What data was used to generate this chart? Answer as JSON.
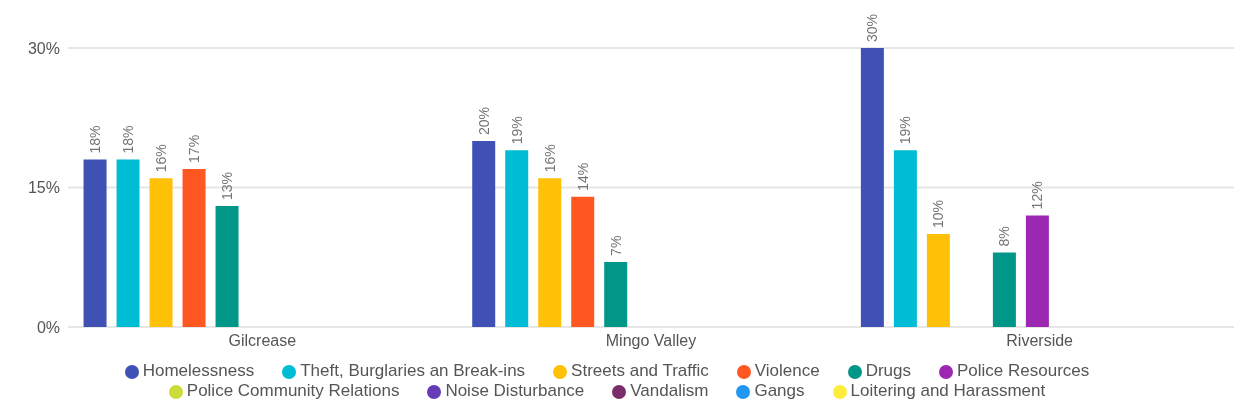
{
  "chart_data": {
    "type": "bar",
    "categories": [
      "Gilcrease",
      "Mingo Valley",
      "Riverside"
    ],
    "series": [
      {
        "name": "Homelessness",
        "color": "#3f51b5",
        "values": [
          18,
          20,
          30
        ],
        "value_labels": [
          "18%",
          "20%",
          "30%"
        ]
      },
      {
        "name": "Theft, Burglaries an Break-ins",
        "color": "#00bcd4",
        "values": [
          18,
          19,
          19
        ],
        "value_labels": [
          "18%",
          "19%",
          "19%"
        ]
      },
      {
        "name": "Streets and Traffic",
        "color": "#ffc107",
        "values": [
          16,
          16,
          10
        ],
        "value_labels": [
          "16%",
          "16%",
          "10%"
        ]
      },
      {
        "name": "Violence",
        "color": "#ff5722",
        "values": [
          17,
          14,
          null
        ],
        "value_labels": [
          "17%",
          "14%",
          null
        ]
      },
      {
        "name": "Drugs",
        "color": "#009688",
        "values": [
          13,
          7,
          8
        ],
        "value_labels": [
          "13%",
          "7%",
          "8%"
        ]
      },
      {
        "name": "Police Resources",
        "color": "#9c27b0",
        "values": [
          null,
          null,
          12
        ],
        "value_labels": [
          null,
          null,
          "12%"
        ]
      },
      {
        "name": "Police Community Relations",
        "color": "#cddc39",
        "values": [
          null,
          null,
          null
        ]
      },
      {
        "name": "Noise Disturbance",
        "color": "#673ab7",
        "values": [
          null,
          null,
          null
        ]
      },
      {
        "name": "Vandalism",
        "color": "#7b2d6b",
        "values": [
          null,
          null,
          null
        ]
      },
      {
        "name": "Gangs",
        "color": "#2196f3",
        "values": [
          null,
          null,
          null
        ]
      },
      {
        "name": "Loitering and Harassment",
        "color": "#ffeb3b",
        "values": [
          null,
          null,
          null
        ]
      }
    ],
    "ylim": [
      0,
      30
    ],
    "yticks": [
      {
        "value": 0,
        "label": "0%"
      },
      {
        "value": 15,
        "label": "15%"
      },
      {
        "value": 30,
        "label": "30%"
      }
    ],
    "grid": "y",
    "legend": "bottom"
  }
}
